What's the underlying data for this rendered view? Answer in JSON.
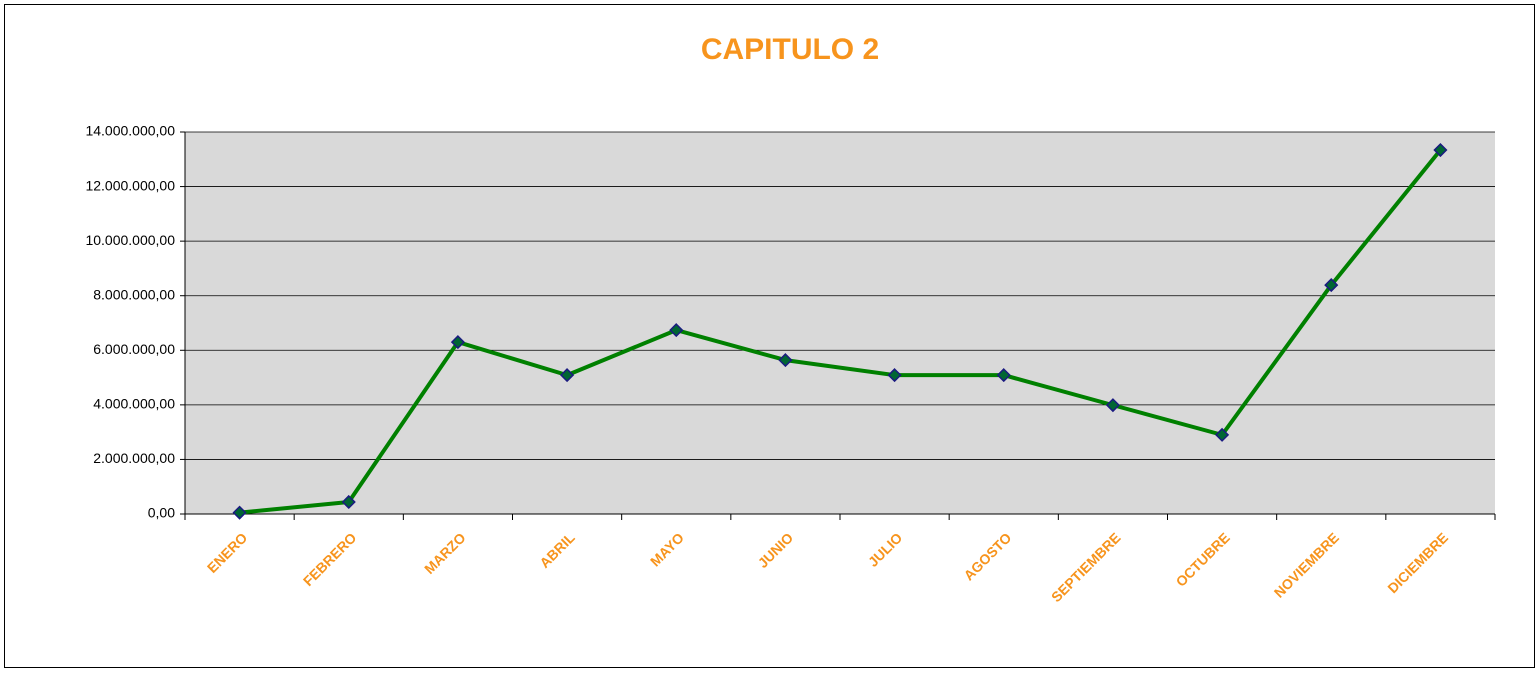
{
  "chart_data": {
    "type": "line",
    "title": "CAPITULO 2",
    "categories": [
      "ENERO",
      "FEBRERO",
      "MARZO",
      "ABRIL",
      "MAYO",
      "JUNIO",
      "JULIO",
      "AGOSTO",
      "SEPTIEMBRE",
      "OCTUBRE",
      "NOVIEMBRE",
      "DICIEMBRE"
    ],
    "values": [
      50000,
      440000,
      6300000,
      5090000,
      6740000,
      5640000,
      5090000,
      5090000,
      3990000,
      2900000,
      8390000,
      13340000
    ],
    "color": "#008000",
    "marker_color": "#006633",
    "marker_edge": "#1a1a80",
    "ylim": [
      0,
      14000000
    ],
    "yticks": [
      {
        "value": 0,
        "label": "0,00"
      },
      {
        "value": 2000000,
        "label": "2.000.000,00"
      },
      {
        "value": 4000000,
        "label": "4.000.000,00"
      },
      {
        "value": 6000000,
        "label": "6.000.000,00"
      },
      {
        "value": 8000000,
        "label": "8.000.000,00"
      },
      {
        "value": 10000000,
        "label": "10.000.000,00"
      },
      {
        "value": 12000000,
        "label": "12.000.000,00"
      },
      {
        "value": 14000000,
        "label": "14.000.000,00"
      }
    ],
    "grid": true
  }
}
